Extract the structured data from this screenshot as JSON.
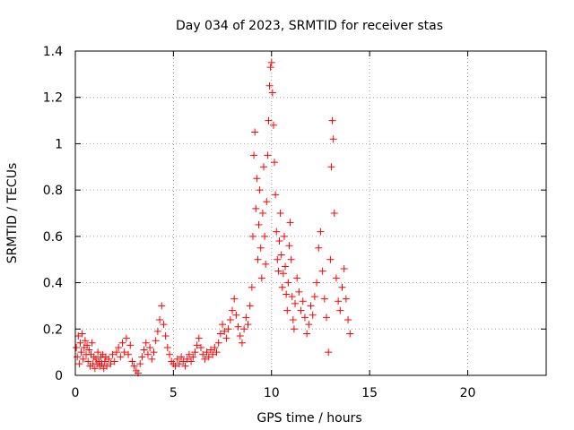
{
  "chart_data": {
    "type": "scatter",
    "title": "Day 034 of 2023, SRMTID for receiver stas",
    "xlabel": "GPS time / hours",
    "ylabel": "SRMTID / TECUs",
    "xlim": [
      0,
      24
    ],
    "ylim": [
      0,
      1.4
    ],
    "xticks": [
      0,
      5,
      10,
      15,
      20
    ],
    "xtick_labels": [
      "0",
      "5",
      "10",
      "15",
      "20"
    ],
    "yticks": [
      0,
      0.2,
      0.4,
      0.6,
      0.8,
      1.0,
      1.2,
      1.4
    ],
    "ytick_labels": [
      "0",
      "0.2",
      "0.4",
      "0.6",
      "0.8",
      "1",
      "1.2",
      "1.4"
    ],
    "grid": true,
    "marker": "+",
    "color": "#ff0000",
    "series": [
      {
        "name": "SRMTID",
        "points": [
          [
            0.05,
            0.12
          ],
          [
            0.1,
            0.08
          ],
          [
            0.15,
            0.17
          ],
          [
            0.2,
            0.05
          ],
          [
            0.25,
            0.14
          ],
          [
            0.3,
            0.1
          ],
          [
            0.35,
            0.18
          ],
          [
            0.4,
            0.07
          ],
          [
            0.45,
            0.12
          ],
          [
            0.5,
            0.15
          ],
          [
            0.55,
            0.09
          ],
          [
            0.6,
            0.13
          ],
          [
            0.65,
            0.06
          ],
          [
            0.7,
            0.11
          ],
          [
            0.75,
            0.04
          ],
          [
            0.8,
            0.09
          ],
          [
            0.85,
            0.14
          ],
          [
            0.9,
            0.05
          ],
          [
            0.95,
            0.08
          ],
          [
            1.0,
            0.03
          ],
          [
            1.05,
            0.07
          ],
          [
            1.1,
            0.05
          ],
          [
            1.15,
            0.1
          ],
          [
            1.2,
            0.06
          ],
          [
            1.25,
            0.04
          ],
          [
            1.3,
            0.08
          ],
          [
            1.35,
            0.05
          ],
          [
            1.4,
            0.09
          ],
          [
            1.45,
            0.03
          ],
          [
            1.5,
            0.06
          ],
          [
            1.55,
            0.08
          ],
          [
            1.6,
            0.04
          ],
          [
            1.7,
            0.07
          ],
          [
            1.8,
            0.05
          ],
          [
            1.9,
            0.09
          ],
          [
            2.0,
            0.06
          ],
          [
            2.1,
            0.1
          ],
          [
            2.2,
            0.12
          ],
          [
            2.3,
            0.08
          ],
          [
            2.4,
            0.14
          ],
          [
            2.5,
            0.1
          ],
          [
            2.6,
            0.16
          ],
          [
            2.7,
            0.09
          ],
          [
            2.8,
            0.13
          ],
          [
            2.9,
            0.06
          ],
          [
            3.0,
            0.04
          ],
          [
            3.1,
            0.02
          ],
          [
            3.2,
            0.01
          ],
          [
            3.3,
            0.05
          ],
          [
            3.4,
            0.08
          ],
          [
            3.5,
            0.11
          ],
          [
            3.6,
            0.14
          ],
          [
            3.7,
            0.09
          ],
          [
            3.8,
            0.12
          ],
          [
            3.9,
            0.07
          ],
          [
            4.0,
            0.1
          ],
          [
            4.1,
            0.15
          ],
          [
            4.2,
            0.19
          ],
          [
            4.3,
            0.24
          ],
          [
            4.4,
            0.3
          ],
          [
            4.5,
            0.22
          ],
          [
            4.6,
            0.17
          ],
          [
            4.7,
            0.12
          ],
          [
            4.8,
            0.09
          ],
          [
            4.9,
            0.06
          ],
          [
            5.0,
            0.05
          ],
          [
            5.1,
            0.04
          ],
          [
            5.2,
            0.07
          ],
          [
            5.3,
            0.05
          ],
          [
            5.4,
            0.08
          ],
          [
            5.5,
            0.06
          ],
          [
            5.6,
            0.04
          ],
          [
            5.7,
            0.07
          ],
          [
            5.8,
            0.09
          ],
          [
            5.9,
            0.06
          ],
          [
            6.0,
            0.08
          ],
          [
            6.1,
            0.1
          ],
          [
            6.2,
            0.13
          ],
          [
            6.3,
            0.16
          ],
          [
            6.4,
            0.12
          ],
          [
            6.5,
            0.09
          ],
          [
            6.6,
            0.07
          ],
          [
            6.7,
            0.1
          ],
          [
            6.8,
            0.08
          ],
          [
            6.9,
            0.11
          ],
          [
            7.0,
            0.09
          ],
          [
            7.1,
            0.12
          ],
          [
            7.2,
            0.1
          ],
          [
            7.3,
            0.14
          ],
          [
            7.4,
            0.18
          ],
          [
            7.5,
            0.22
          ],
          [
            7.6,
            0.19
          ],
          [
            7.7,
            0.16
          ],
          [
            7.8,
            0.2
          ],
          [
            7.9,
            0.24
          ],
          [
            8.0,
            0.28
          ],
          [
            8.1,
            0.33
          ],
          [
            8.2,
            0.26
          ],
          [
            8.3,
            0.21
          ],
          [
            8.4,
            0.17
          ],
          [
            8.5,
            0.14
          ],
          [
            8.6,
            0.2
          ],
          [
            8.7,
            0.25
          ],
          [
            8.8,
            0.22
          ],
          [
            8.9,
            0.3
          ],
          [
            9.0,
            0.38
          ],
          [
            9.05,
            0.6
          ],
          [
            9.1,
            0.95
          ],
          [
            9.15,
            1.05
          ],
          [
            9.2,
            0.72
          ],
          [
            9.25,
            0.85
          ],
          [
            9.3,
            0.5
          ],
          [
            9.35,
            0.65
          ],
          [
            9.4,
            0.8
          ],
          [
            9.45,
            0.55
          ],
          [
            9.5,
            0.42
          ],
          [
            9.55,
            0.7
          ],
          [
            9.6,
            0.9
          ],
          [
            9.65,
            0.6
          ],
          [
            9.7,
            0.48
          ],
          [
            9.75,
            0.75
          ],
          [
            9.8,
            0.95
          ],
          [
            9.85,
            1.1
          ],
          [
            9.9,
            1.25
          ],
          [
            9.95,
            1.33
          ],
          [
            10.0,
            1.35
          ],
          [
            10.05,
            1.22
          ],
          [
            10.1,
            1.08
          ],
          [
            10.15,
            0.92
          ],
          [
            10.2,
            0.78
          ],
          [
            10.25,
            0.62
          ],
          [
            10.3,
            0.5
          ],
          [
            10.35,
            0.45
          ],
          [
            10.4,
            0.58
          ],
          [
            10.45,
            0.7
          ],
          [
            10.5,
            0.52
          ],
          [
            10.55,
            0.38
          ],
          [
            10.6,
            0.44
          ],
          [
            10.65,
            0.6
          ],
          [
            10.7,
            0.47
          ],
          [
            10.75,
            0.35
          ],
          [
            10.8,
            0.28
          ],
          [
            10.85,
            0.4
          ],
          [
            10.9,
            0.56
          ],
          [
            10.95,
            0.66
          ],
          [
            11.0,
            0.5
          ],
          [
            11.05,
            0.34
          ],
          [
            11.1,
            0.24
          ],
          [
            11.15,
            0.2
          ],
          [
            11.2,
            0.31
          ],
          [
            11.3,
            0.42
          ],
          [
            11.4,
            0.36
          ],
          [
            11.5,
            0.28
          ],
          [
            11.6,
            0.32
          ],
          [
            11.7,
            0.25
          ],
          [
            11.8,
            0.18
          ],
          [
            11.9,
            0.22
          ],
          [
            12.0,
            0.3
          ],
          [
            12.1,
            0.26
          ],
          [
            12.2,
            0.34
          ],
          [
            12.3,
            0.4
          ],
          [
            12.4,
            0.55
          ],
          [
            12.5,
            0.62
          ],
          [
            12.6,
            0.45
          ],
          [
            12.7,
            0.33
          ],
          [
            12.8,
            0.25
          ],
          [
            12.9,
            0.1
          ],
          [
            13.0,
            0.5
          ],
          [
            13.05,
            0.9
          ],
          [
            13.1,
            1.1
          ],
          [
            13.15,
            1.02
          ],
          [
            13.2,
            0.7
          ],
          [
            13.3,
            0.42
          ],
          [
            13.4,
            0.32
          ],
          [
            13.5,
            0.28
          ],
          [
            13.6,
            0.38
          ],
          [
            13.7,
            0.46
          ],
          [
            13.8,
            0.33
          ],
          [
            13.9,
            0.24
          ],
          [
            14.0,
            0.18
          ]
        ]
      }
    ]
  }
}
